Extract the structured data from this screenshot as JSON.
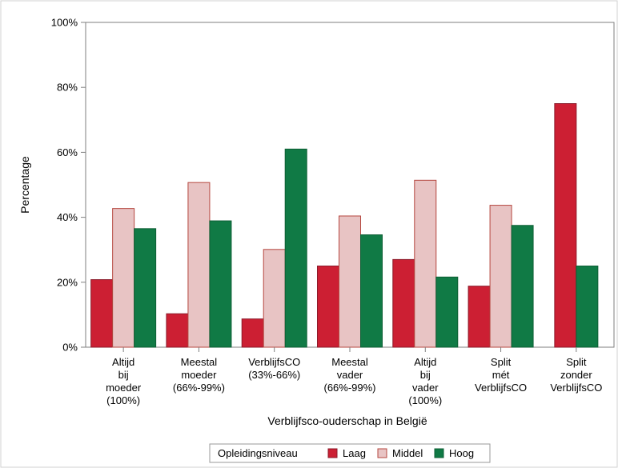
{
  "chart_data": {
    "type": "bar",
    "title": "",
    "xlabel": "Verblijfsco-ouderschap in België",
    "ylabel": "Percentage",
    "ylim": [
      0,
      100
    ],
    "yticks": [
      0,
      20,
      40,
      60,
      80,
      100
    ],
    "ytick_labels": [
      "0%",
      "20%",
      "40%",
      "60%",
      "80%",
      "100%"
    ],
    "grid": false,
    "legend_placement": "bottom",
    "legend_title": "Opleidingsniveau",
    "categories": [
      [
        "Altijd",
        "bij",
        "moeder",
        "(100%)"
      ],
      [
        "Meestal",
        "moeder",
        "(66%-99%)"
      ],
      [
        "VerblijfsCO",
        "(33%-66%)"
      ],
      [
        "Meestal",
        "vader",
        "(66%-99%)"
      ],
      [
        "Altijd",
        "bij",
        "vader",
        "(100%)"
      ],
      [
        "Split",
        "mét",
        "VerblijfsCO"
      ],
      [
        "Split",
        "zonder",
        "VerblijfsCO"
      ]
    ],
    "series": [
      {
        "name": "Laag",
        "color": "#cc1f33",
        "stroke": "#8b1a2a",
        "values": [
          20.8,
          10.3,
          8.7,
          25.0,
          27.0,
          18.8,
          75.0
        ]
      },
      {
        "name": "Middel",
        "color": "#e8c4c4",
        "stroke": "#b5473f",
        "values": [
          42.7,
          50.7,
          30.1,
          40.4,
          51.4,
          43.7,
          null
        ]
      },
      {
        "name": "Hoog",
        "color": "#107a45",
        "stroke": "#0d5e34",
        "values": [
          36.5,
          38.9,
          61.0,
          34.6,
          21.6,
          37.5,
          25.0
        ]
      }
    ]
  }
}
